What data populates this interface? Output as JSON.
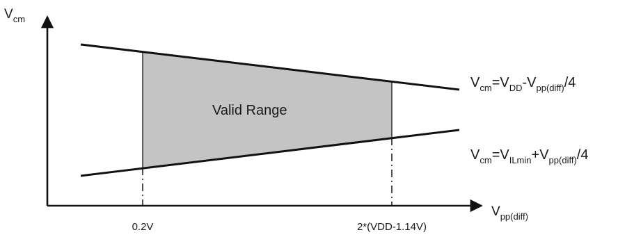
{
  "diagram": {
    "y_axis": {
      "base": "V",
      "sub": "cm"
    },
    "x_axis": {
      "base": "V",
      "sub": "pp(diff)"
    },
    "region_label": "Valid Range",
    "upper_bound": {
      "parts": [
        {
          "text": "V",
          "sub": false
        },
        {
          "text": "cm",
          "sub": true
        },
        {
          "text": "=V",
          "sub": false
        },
        {
          "text": "DD",
          "sub": true
        },
        {
          "text": "-V",
          "sub": false
        },
        {
          "text": "pp(diff)",
          "sub": true
        },
        {
          "text": "/4",
          "sub": false
        }
      ]
    },
    "lower_bound": {
      "parts": [
        {
          "text": "V",
          "sub": false
        },
        {
          "text": "cm",
          "sub": true
        },
        {
          "text": "=V",
          "sub": false
        },
        {
          "text": "ILmin",
          "sub": true
        },
        {
          "text": "+V",
          "sub": false
        },
        {
          "text": "pp(diff)",
          "sub": true
        },
        {
          "text": "/4",
          "sub": false
        }
      ]
    },
    "x_ticks": {
      "left": "0.2V",
      "right": "2*(VDD-1.14V)"
    },
    "colors": {
      "region_fill": "#c4c4c4",
      "line": "#111111"
    }
  }
}
